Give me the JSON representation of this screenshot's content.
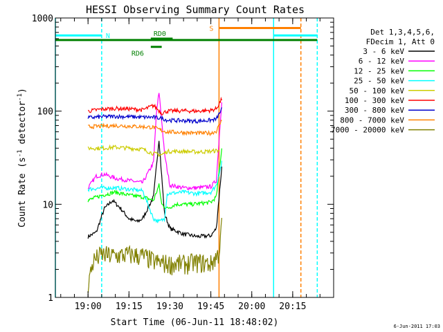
{
  "chart_data": {
    "type": "line",
    "title": "HESSI Observing Summary Count Rates",
    "xlabel": "Start Time (06-Jun-11 18:48:02)",
    "ylabel_main": "Count Rate (s",
    "ylabel_sup1": "-1",
    "ylabel_mid": " detector",
    "ylabel_sup2": "-1",
    "ylabel_end": ")",
    "yscale": "log",
    "xlim": [
      "18:48:02",
      "20:30:00"
    ],
    "ylim": [
      1,
      1000
    ],
    "xticks": [
      "19:00",
      "19:15",
      "19:30",
      "19:45",
      "20:00",
      "20:15"
    ],
    "yticks": [
      "1",
      "10",
      "100",
      "1000"
    ],
    "grid": false,
    "legend_position": "right",
    "legend_header": [
      "Det 1,3,4,5,6,",
      "FDecim 1, Att 0"
    ],
    "series": [
      {
        "name": "3 - 6 keV",
        "color": "#000000",
        "points": [
          [
            "19:00",
            4.5
          ],
          [
            "19:03",
            5
          ],
          [
            "19:06",
            9
          ],
          [
            "19:09",
            11
          ],
          [
            "19:12",
            9
          ],
          [
            "19:15",
            7
          ],
          [
            "19:18",
            6.5
          ],
          [
            "19:20",
            7
          ],
          [
            "19:24",
            12
          ],
          [
            "19:26",
            50
          ],
          [
            "19:27",
            20
          ],
          [
            "19:28",
            8
          ],
          [
            "19:30",
            5.5
          ],
          [
            "19:35",
            4.8
          ],
          [
            "19:40",
            4.5
          ],
          [
            "19:45",
            4.6
          ],
          [
            "19:47",
            5.5
          ],
          [
            "19:49",
            25
          ]
        ]
      },
      {
        "name": "6 - 12 keV",
        "color": "#ff00ff",
        "points": [
          [
            "19:00",
            15
          ],
          [
            "19:03",
            20
          ],
          [
            "19:06",
            21
          ],
          [
            "19:10",
            19
          ],
          [
            "19:15",
            18
          ],
          [
            "19:20",
            17
          ],
          [
            "19:24",
            28
          ],
          [
            "19:25",
            90
          ],
          [
            "19:26",
            160
          ],
          [
            "19:27",
            80
          ],
          [
            "19:28",
            35
          ],
          [
            "19:30",
            16
          ],
          [
            "19:35",
            15
          ],
          [
            "19:40",
            15
          ],
          [
            "19:45",
            15.5
          ],
          [
            "19:47",
            18
          ],
          [
            "19:49",
            130
          ]
        ]
      },
      {
        "name": "12 - 25 keV",
        "color": "#00ff00",
        "points": [
          [
            "19:00",
            11
          ],
          [
            "19:05",
            12.5
          ],
          [
            "19:10",
            13.5
          ],
          [
            "19:15",
            12.5
          ],
          [
            "19:20",
            12
          ],
          [
            "19:24",
            11
          ],
          [
            "19:26",
            16
          ],
          [
            "19:27",
            10
          ],
          [
            "19:29",
            9
          ],
          [
            "19:32",
            10
          ],
          [
            "19:38",
            10
          ],
          [
            "19:45",
            10.5
          ],
          [
            "19:47",
            12
          ],
          [
            "19:49",
            40
          ]
        ]
      },
      {
        "name": "25 - 50 keV",
        "color": "#00ffff",
        "points": [
          [
            "19:00",
            14.5
          ],
          [
            "19:05",
            15
          ],
          [
            "19:10",
            15
          ],
          [
            "19:15",
            14.5
          ],
          [
            "19:20",
            14
          ],
          [
            "19:24",
            7
          ],
          [
            "19:26",
            6.5
          ],
          [
            "19:28",
            7
          ],
          [
            "19:29",
            13
          ],
          [
            "19:35",
            13.5
          ],
          [
            "19:40",
            13
          ],
          [
            "19:45",
            13.5
          ],
          [
            "19:47",
            16
          ],
          [
            "19:49",
            28
          ]
        ]
      },
      {
        "name": "50 - 100 keV",
        "color": "#cccc00",
        "points": [
          [
            "19:00",
            40
          ],
          [
            "19:05",
            40
          ],
          [
            "19:10",
            41
          ],
          [
            "19:15",
            40
          ],
          [
            "19:20",
            39
          ],
          [
            "19:24",
            35
          ],
          [
            "19:27",
            34
          ],
          [
            "19:29",
            37
          ],
          [
            "19:35",
            37
          ],
          [
            "19:40",
            36.5
          ],
          [
            "19:45",
            37
          ],
          [
            "19:48",
            38
          ]
        ]
      },
      {
        "name": "100 - 300 keV",
        "color": "#ff0000",
        "points": [
          [
            "19:00",
            100
          ],
          [
            "19:05",
            105
          ],
          [
            "19:10",
            107
          ],
          [
            "19:15",
            106
          ],
          [
            "19:20",
            103
          ],
          [
            "19:24",
            115
          ],
          [
            "19:27",
            95
          ],
          [
            "19:29",
            100
          ],
          [
            "19:35",
            101
          ],
          [
            "19:40",
            100
          ],
          [
            "19:45",
            102
          ],
          [
            "19:47",
            106
          ],
          [
            "19:49",
            135
          ]
        ]
      },
      {
        "name": "300 - 800 keV",
        "color": "#0000cc",
        "points": [
          [
            "19:00",
            85
          ],
          [
            "19:05",
            87
          ],
          [
            "19:10",
            88
          ],
          [
            "19:15",
            87
          ],
          [
            "19:20",
            86
          ],
          [
            "19:24",
            86
          ],
          [
            "19:27",
            84
          ],
          [
            "19:29",
            80
          ],
          [
            "19:35",
            79
          ],
          [
            "19:40",
            78
          ],
          [
            "19:45",
            80
          ],
          [
            "19:47",
            82
          ],
          [
            "19:49",
            105
          ]
        ]
      },
      {
        "name": "800 - 7000 keV",
        "color": "#ff8000",
        "points": [
          [
            "19:00",
            68
          ],
          [
            "19:05",
            69
          ],
          [
            "19:10",
            70
          ],
          [
            "19:15",
            69
          ],
          [
            "19:20",
            68
          ],
          [
            "19:24",
            67
          ],
          [
            "19:27",
            62
          ],
          [
            "19:29",
            60
          ],
          [
            "19:35",
            59
          ],
          [
            "19:40",
            58
          ],
          [
            "19:45",
            58
          ],
          [
            "19:47",
            61
          ],
          [
            "19:49",
            80
          ]
        ]
      },
      {
        "name": "7000 - 20000 keV",
        "color": "#808000",
        "points": [
          [
            "19:00",
            1.4
          ],
          [
            "19:02",
            2.5
          ],
          [
            "19:05",
            2.9
          ],
          [
            "19:10",
            2.8
          ],
          [
            "19:15",
            2.9
          ],
          [
            "19:20",
            2.8
          ],
          [
            "19:25",
            2.4
          ],
          [
            "19:30",
            2.3
          ],
          [
            "19:35",
            2.3
          ],
          [
            "19:40",
            2.4
          ],
          [
            "19:45",
            2.3
          ],
          [
            "19:48",
            3
          ],
          [
            "19:49",
            7
          ]
        ]
      }
    ],
    "state_bars": [
      {
        "label": "N",
        "color": "#00ffff",
        "segments": [
          [
            "18:48:02",
            "19:05"
          ],
          [
            "20:08",
            "20:24"
          ]
        ],
        "y": 650
      },
      {
        "label": "S",
        "color": "#ff8000",
        "segments": [
          [
            "19:48",
            "20:18"
          ]
        ],
        "y": 780
      },
      {
        "label": "",
        "color": "#008000",
        "segments": [
          [
            "18:48:02",
            "20:24"
          ]
        ],
        "y": 580
      },
      {
        "label": "RD0",
        "color": "#008000",
        "segments": [
          [
            "19:23",
            "19:31"
          ]
        ],
        "y": 600
      },
      {
        "label": "RD6",
        "color": "#008000",
        "segments": [
          [
            "19:23",
            "19:27"
          ]
        ],
        "y": 490
      }
    ],
    "vertical_markers": [
      {
        "time": "18:48:02",
        "color": "#00ffff",
        "style": "solid"
      },
      {
        "time": "19:05",
        "color": "#00ffff",
        "style": "dashed"
      },
      {
        "time": "19:48",
        "color": "#ff8000",
        "style": "solid"
      },
      {
        "time": "20:08",
        "color": "#00ffff",
        "style": "solid"
      },
      {
        "time": "20:18",
        "color": "#ff8000",
        "style": "dashed"
      },
      {
        "time": "20:24",
        "color": "#00ffff",
        "style": "dashed"
      }
    ]
  },
  "footer": {
    "timestamp": "6-Jun-2011 17:03"
  }
}
